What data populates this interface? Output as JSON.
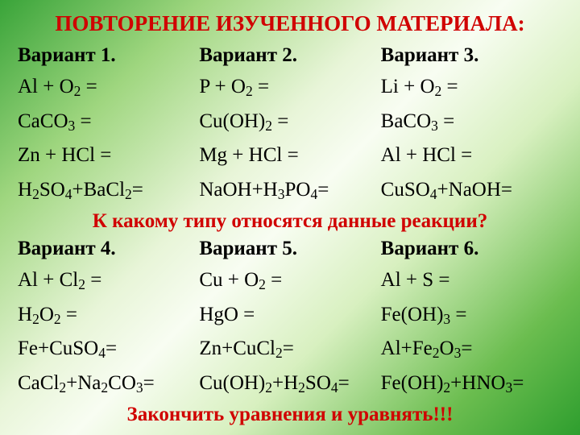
{
  "title": "ПОВТОРЕНИЕ ИЗУЧЕННОГО МАТЕРИАЛА:",
  "group1": {
    "v1": {
      "head": "Вариант 1.",
      "e1": "Al + O",
      "s1": "2",
      "t1": " =",
      "e2": "CaCO",
      "s2": "3",
      "t2": " =",
      "e3": "Zn + HCl =",
      "e4a": "H",
      "s4a": "2",
      "e4b": "SO",
      "s4b": "4",
      "e4c": "+BaCl",
      "s4c": "2",
      "t4": "="
    },
    "v2": {
      "head": "Вариант 2.",
      "e1": "P + O",
      "s1": "2",
      "t1": " =",
      "e2": "Cu(OH)",
      "s2": "2",
      "t2": " =",
      "e3": "Mg + HCl =",
      "e4a": "NaOH+H",
      "s4a": "3",
      "e4b": "PO",
      "s4b": "4",
      "t4": "="
    },
    "v3": {
      "head": "Вариант 3.",
      "e1": "Li + O",
      "s1": "2",
      "t1": " =",
      "e2": "BaCO",
      "s2": "3",
      "t2": " =",
      "e3": "Al + HCl =",
      "e4a": "CuSO",
      "s4a": "4",
      "e4b": "+NaOH=",
      "s4b": ""
    }
  },
  "question": "К какому типу относятся данные реакции?",
  "group2": {
    "v4": {
      "head": "Вариант 4.",
      "e1": "Al + Cl",
      "s1": "2",
      "t1": " =",
      "e2a": "H",
      "s2a": "2",
      "e2b": "O",
      "s2b": "2",
      "t2": " =",
      "e3a": "Fe+CuSO",
      "s3a": "4",
      "t3": "=",
      "e4a": "CaCl",
      "s4a": "2",
      "e4b": "+Na",
      "s4b": "2",
      "e4c": "CO",
      "s4c": "3",
      "t4": "="
    },
    "v5": {
      "head": "Вариант 5.",
      "e1": "Cu + O",
      "s1": "2",
      "t1": " =",
      "e2": "HgO =",
      "e3a": "Zn+CuCl",
      "s3a": "2",
      "t3": "=",
      "e4a": "Cu(OH)",
      "s4a": "2",
      "e4b": "+H",
      "s4b": "2",
      "e4c": "SO",
      "s4c": "4",
      "t4": "="
    },
    "v6": {
      "head": "Вариант 6.",
      "e1": "Al + S =",
      "e2a": "Fe(OH)",
      "s2a": "3",
      "t2": " =",
      "e3a": "Al+Fe",
      "s3a": "2",
      "e3b": "O",
      "s3b": "3",
      "t3": "=",
      "e4a": "Fe(OH)",
      "s4a": "2",
      "e4b": "+HNO",
      "s4b": "3",
      "t4": "="
    }
  },
  "footer": "Закончить уравнения и уравнять!!!",
  "colors": {
    "title_color": "#d00000",
    "text_color": "#000000"
  },
  "typography": {
    "font_family": "Times New Roman",
    "base_fontsize_pt": 19,
    "title_fontsize_pt": 20
  },
  "background": {
    "type": "linear-gradient",
    "stops": [
      "#39a439",
      "#9fd67f",
      "#e8f5d8",
      "#f8fdf2",
      "#d8f0c0",
      "#6bbd4f",
      "#2e9e2e"
    ]
  }
}
